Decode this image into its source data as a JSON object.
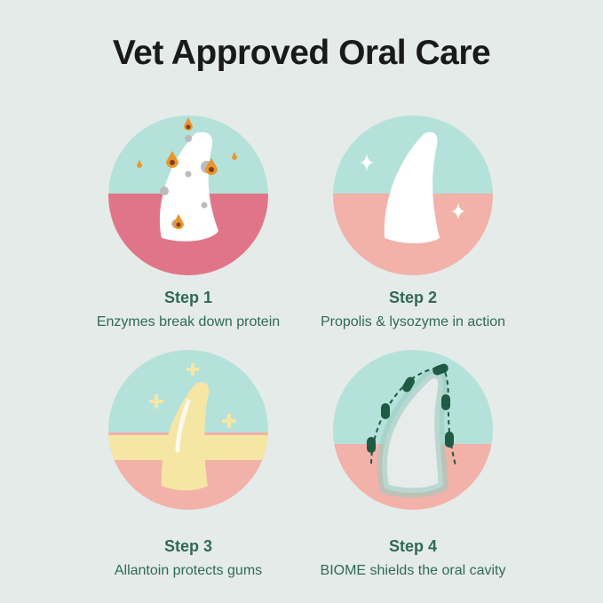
{
  "title": "Vet Approved Oral Care",
  "colors": {
    "background": "#e5ebe9",
    "teal": "#b4e2da",
    "gum_red": "#e07589",
    "gum_pink": "#f2b1a9",
    "yellow": "#f5e6a4",
    "text_green": "#2f6a55"
  },
  "steps": [
    {
      "label": "Step 1",
      "description": "Enzymes break down protein",
      "icon": "tooth-with-bacteria-illustration"
    },
    {
      "label": "Step 2",
      "description": "Propolis & lysozyme in action",
      "icon": "clean-tooth-sparkle-illustration"
    },
    {
      "label": "Step 3",
      "description": "Allantoin protects gums",
      "icon": "tooth-with-healing-gums-illustration"
    },
    {
      "label": "Step 4",
      "description": "BIOME shields the oral cavity",
      "icon": "tooth-with-probiotic-shield-illustration"
    }
  ]
}
